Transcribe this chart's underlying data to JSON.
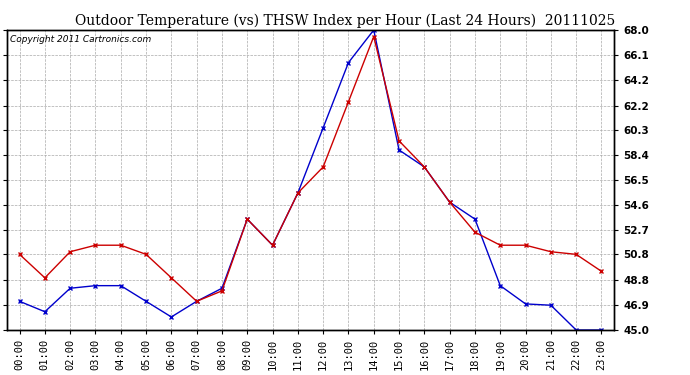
{
  "title": "Outdoor Temperature (vs) THSW Index per Hour (Last 24 Hours)  20111025",
  "copyright": "Copyright 2011 Cartronics.com",
  "hours": [
    "00:00",
    "01:00",
    "02:00",
    "03:00",
    "04:00",
    "05:00",
    "06:00",
    "07:00",
    "08:00",
    "09:00",
    "10:00",
    "11:00",
    "12:00",
    "13:00",
    "14:00",
    "15:00",
    "16:00",
    "17:00",
    "18:00",
    "19:00",
    "20:00",
    "21:00",
    "22:00",
    "23:00"
  ],
  "temp": [
    50.8,
    49.0,
    51.0,
    51.5,
    51.5,
    50.8,
    49.0,
    47.2,
    48.0,
    53.5,
    51.5,
    55.5,
    57.5,
    62.5,
    67.5,
    59.5,
    57.5,
    54.8,
    52.5,
    51.5,
    51.5,
    51.0,
    50.8,
    49.5
  ],
  "thsw": [
    47.2,
    46.4,
    48.2,
    48.4,
    48.4,
    47.2,
    46.0,
    47.2,
    48.2,
    53.5,
    51.5,
    55.5,
    60.5,
    65.5,
    68.0,
    58.8,
    57.5,
    54.8,
    53.5,
    48.4,
    47.0,
    46.9,
    45.0,
    45.0
  ],
  "ymin": 45.0,
  "ymax": 68.0,
  "ytick_values": [
    45.0,
    46.9,
    48.8,
    50.8,
    52.7,
    54.6,
    56.5,
    58.4,
    60.3,
    62.2,
    64.2,
    66.1,
    68.0
  ],
  "temp_color": "#cc0000",
  "thsw_color": "#0000cc",
  "bg_color": "#ffffff",
  "grid_color": "#aaaaaa",
  "title_fontsize": 10,
  "copyright_fontsize": 6.5,
  "tick_fontsize": 7.5
}
